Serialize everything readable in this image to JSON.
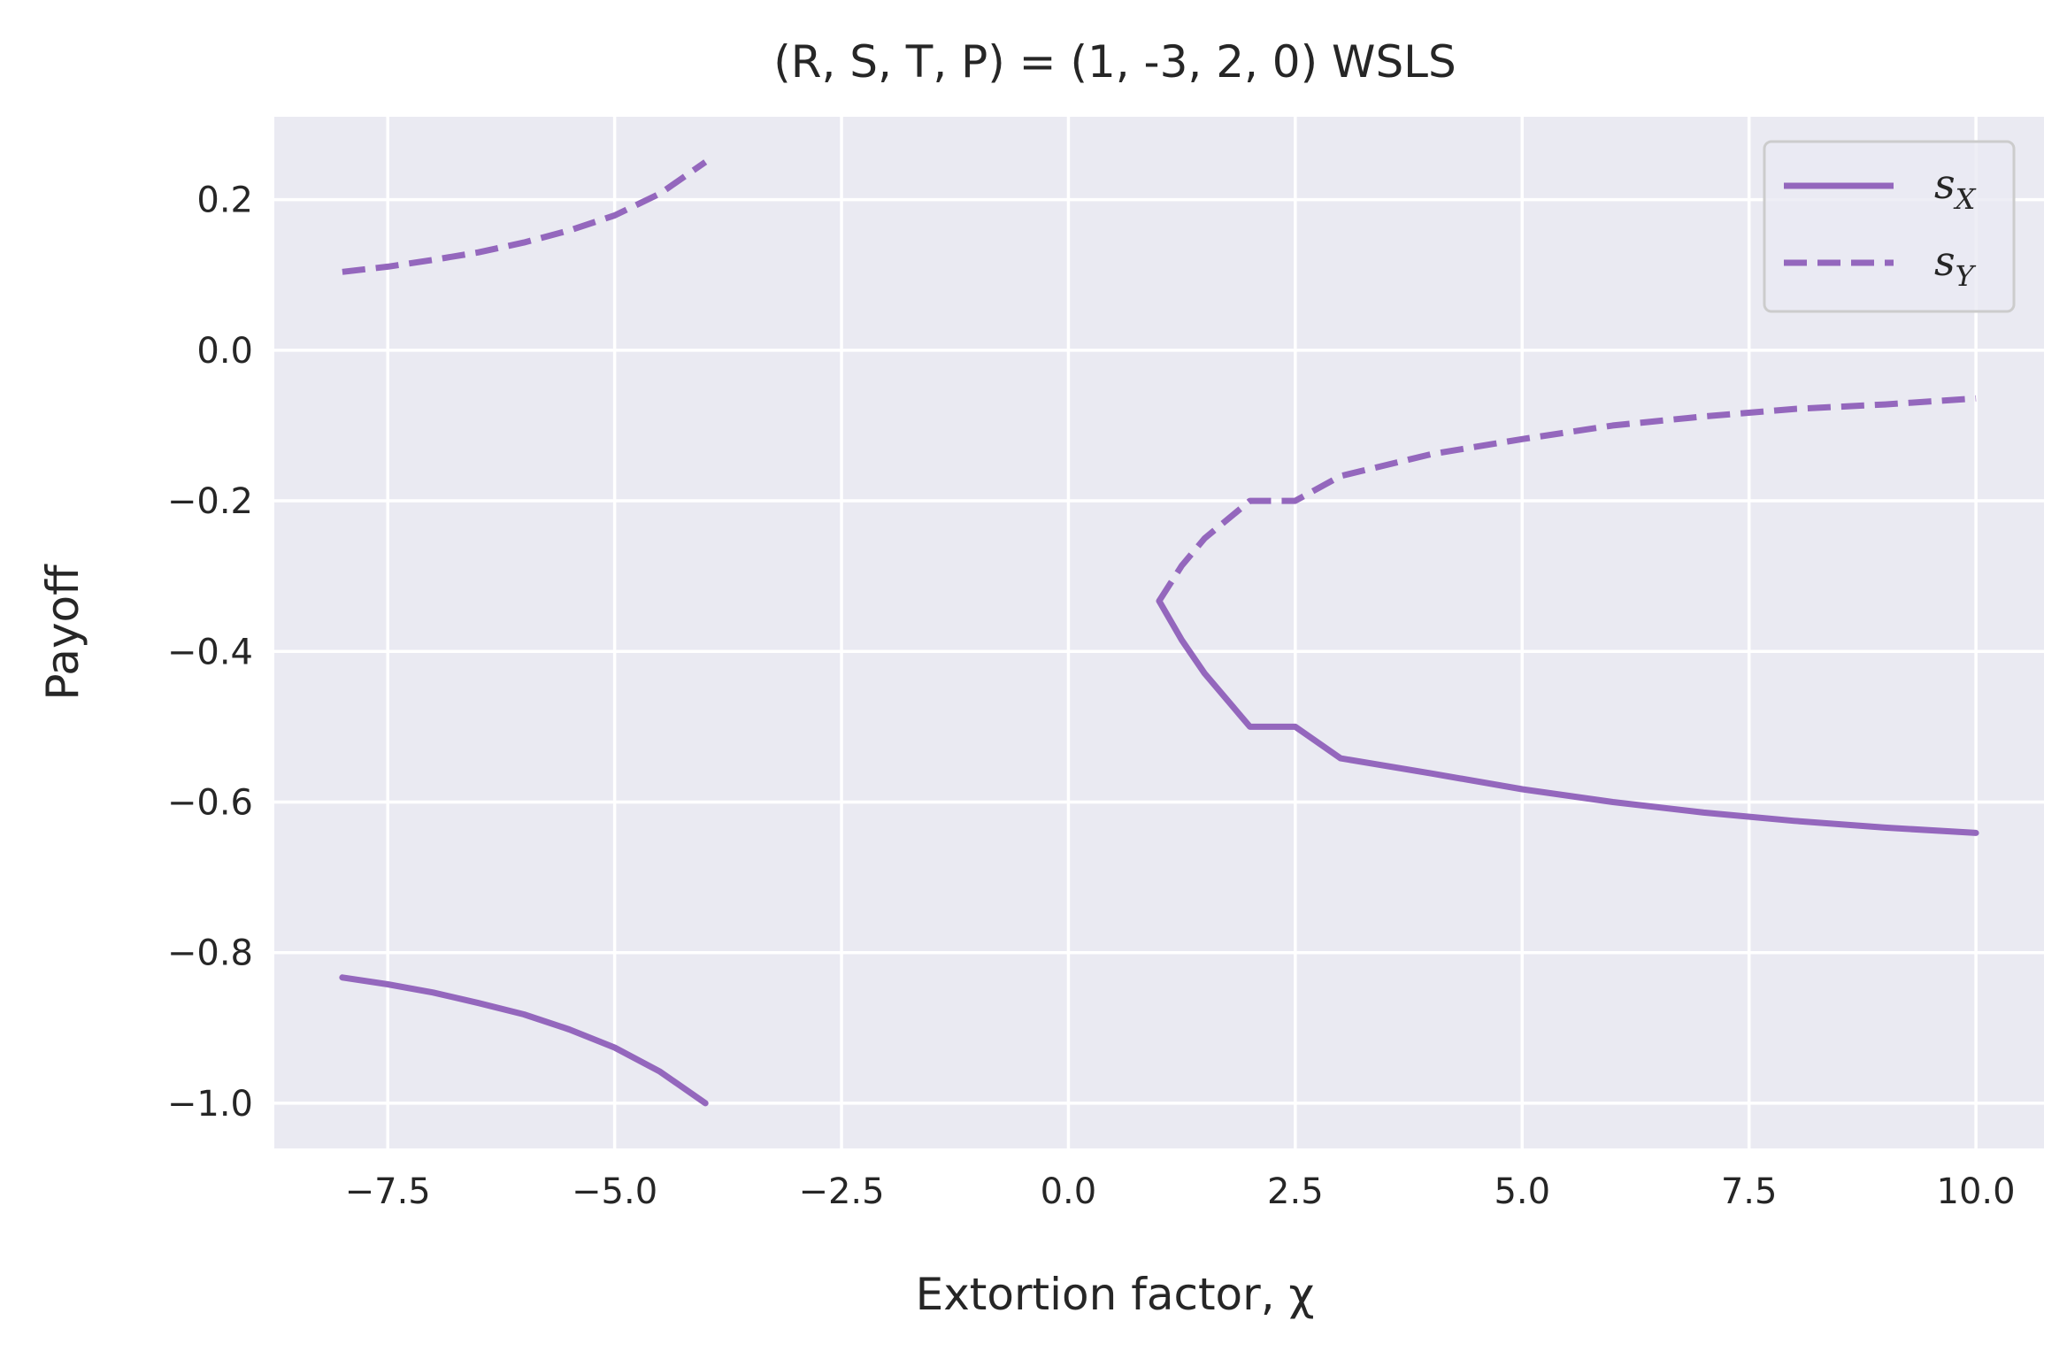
{
  "chart_data": {
    "type": "line",
    "title": "(R, S, T, P) = (1, -3, 2, 0)    WSLS",
    "xlabel": "Extortion factor, χ",
    "ylabel": "Payoff",
    "xlim": [
      -8.75,
      10.75
    ],
    "ylim": [
      -1.06,
      0.31
    ],
    "xticks": [
      -7.5,
      -5.0,
      -2.5,
      0.0,
      2.5,
      5.0,
      7.5,
      10.0
    ],
    "xtick_labels": [
      "−7.5",
      "−5.0",
      "−2.5",
      "0.0",
      "2.5",
      "5.0",
      "7.5",
      "10.0"
    ],
    "yticks": [
      0.2,
      0.0,
      -0.2,
      -0.4,
      -0.6,
      -0.8,
      -1.0
    ],
    "ytick_labels": [
      "0.2",
      "0.0",
      "−0.2",
      "−0.4",
      "−0.6",
      "−0.8",
      "−1.0"
    ],
    "grid": true,
    "legend_position": "top-right",
    "series_color": "#9467bd",
    "background_color": "#eaeaf2",
    "series": [
      {
        "name": "s",
        "subscript": "X",
        "style": "solid",
        "segments": [
          {
            "x": [
              -8.0,
              -7.5,
              -7.0,
              -6.5,
              -6.0,
              -5.5,
              -5.0,
              -4.5,
              -4.0
            ],
            "y": [
              -0.833,
              -0.842,
              -0.853,
              -0.867,
              -0.882,
              -0.902,
              -0.926,
              -0.958,
              -1.0
            ]
          },
          {
            "x": [
              1.0,
              1.25,
              1.5,
              2.0,
              2.5,
              3.0,
              4.0,
              5.0,
              6.0,
              7.0,
              8.0,
              9.0,
              10.0
            ],
            "y": [
              -0.333,
              -0.385,
              -0.429,
              -0.5,
              -0.5,
              -0.542,
              -0.562,
              -0.583,
              -0.6,
              -0.614,
              -0.625,
              -0.634,
              -0.641
            ]
          }
        ]
      },
      {
        "name": "s",
        "subscript": "Y",
        "style": "dashed",
        "segments": [
          {
            "x": [
              -8.0,
              -7.5,
              -7.0,
              -6.5,
              -6.0,
              -5.5,
              -5.0,
              -4.5,
              -4.0
            ],
            "y": [
              0.104,
              0.111,
              0.12,
              0.13,
              0.143,
              0.159,
              0.179,
              0.208,
              0.25
            ]
          },
          {
            "x": [
              1.0,
              1.25,
              1.5,
              2.0,
              2.5,
              3.0,
              4.0,
              5.0,
              6.0,
              7.0,
              8.0,
              9.0,
              10.0
            ],
            "y": [
              -0.333,
              -0.286,
              -0.25,
              -0.2,
              -0.2,
              -0.167,
              -0.138,
              -0.118,
              -0.1,
              -0.088,
              -0.078,
              -0.072,
              -0.064
            ]
          }
        ]
      }
    ]
  }
}
